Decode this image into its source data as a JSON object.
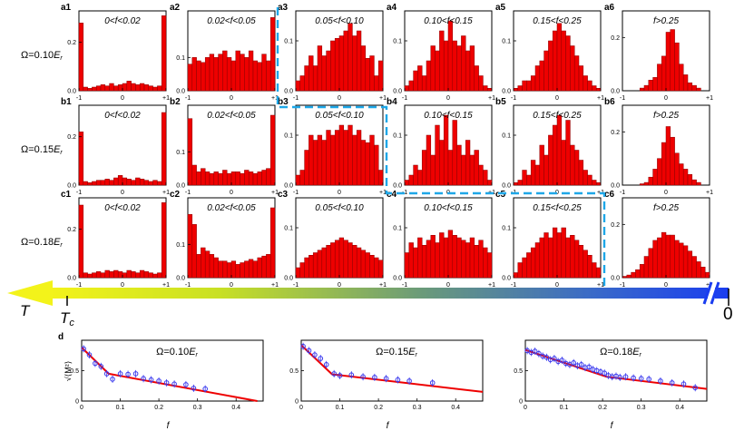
{
  "chart_data": {
    "type": "bar",
    "histograms": {
      "row_labels": [
        {
          "id": "a",
          "prefix": "Ω=0.10",
          "sub": "E",
          "subr": "r"
        },
        {
          "id": "b",
          "prefix": "Ω=0.15",
          "sub": "E",
          "subr": "r"
        },
        {
          "id": "c",
          "prefix": "Ω=0.18",
          "sub": "E",
          "subr": "r"
        }
      ],
      "column_ranges": [
        "0<f<0.02",
        "0.02<f<0.05",
        "0.05<f<0.10",
        "0.10<f<0.15",
        "0.15<f<0.25",
        "f>0.25"
      ],
      "x_ticks": [
        "-1",
        "0",
        "+1"
      ],
      "panels": [
        {
          "id": "a1",
          "y_ticks": [
            "0.2",
            "0.0"
          ],
          "ylim": [
            0,
            0.33
          ],
          "values": [
            0.28,
            0.015,
            0.01,
            0.015,
            0.02,
            0.025,
            0.02,
            0.03,
            0.02,
            0.025,
            0.03,
            0.04,
            0.03,
            0.025,
            0.03,
            0.025,
            0.02,
            0.015,
            0.02,
            0.31
          ]
        },
        {
          "id": "a2",
          "y_ticks": [
            "0.1",
            "0.0"
          ],
          "ylim": [
            0,
            0.24
          ],
          "values": [
            0.08,
            0.1,
            0.09,
            0.085,
            0.1,
            0.11,
            0.1,
            0.11,
            0.12,
            0.1,
            0.09,
            0.12,
            0.11,
            0.1,
            0.12,
            0.09,
            0.085,
            0.11,
            0.09,
            0.22
          ]
        },
        {
          "id": "a3",
          "y_ticks": [
            "0.1",
            "0.0"
          ],
          "ylim": [
            0,
            0.16
          ],
          "values": [
            0.02,
            0.03,
            0.05,
            0.07,
            0.05,
            0.09,
            0.07,
            0.08,
            0.1,
            0.105,
            0.11,
            0.12,
            0.135,
            0.11,
            0.12,
            0.09,
            0.065,
            0.07,
            0.03,
            0.06
          ]
        },
        {
          "id": "a4",
          "y_ticks": [
            "0.1",
            "0.0"
          ],
          "ylim": [
            0,
            0.16
          ],
          "values": [
            0.01,
            0.02,
            0.04,
            0.05,
            0.03,
            0.06,
            0.09,
            0.08,
            0.12,
            0.1,
            0.14,
            0.1,
            0.09,
            0.11,
            0.08,
            0.09,
            0.05,
            0.03,
            0.01,
            0.005
          ]
        },
        {
          "id": "a5",
          "y_ticks": [
            "0.1",
            "0.0"
          ],
          "ylim": [
            0,
            0.16
          ],
          "values": [
            0.005,
            0.01,
            0.02,
            0.02,
            0.03,
            0.05,
            0.06,
            0.08,
            0.1,
            0.12,
            0.135,
            0.12,
            0.11,
            0.09,
            0.07,
            0.05,
            0.03,
            0.02,
            0.01,
            0.005
          ]
        },
        {
          "id": "a6",
          "y_ticks": [
            "0.2",
            "0.0"
          ],
          "ylim": [
            0,
            0.3
          ],
          "values": [
            0,
            0,
            0,
            0,
            0.01,
            0.02,
            0.04,
            0.05,
            0.1,
            0.13,
            0.22,
            0.23,
            0.18,
            0.1,
            0.06,
            0.03,
            0.02,
            0.01,
            0,
            0
          ]
        },
        {
          "id": "b1",
          "y_ticks": [
            "0.2",
            "0.0"
          ],
          "ylim": [
            0,
            0.33
          ],
          "values": [
            0.22,
            0.015,
            0.01,
            0.015,
            0.02,
            0.02,
            0.025,
            0.02,
            0.03,
            0.04,
            0.03,
            0.025,
            0.02,
            0.03,
            0.025,
            0.02,
            0.015,
            0.02,
            0.015,
            0.3
          ]
        },
        {
          "id": "b2",
          "y_ticks": [
            "0.1",
            "0.0"
          ],
          "ylim": [
            0,
            0.24
          ],
          "values": [
            0.2,
            0.06,
            0.04,
            0.05,
            0.04,
            0.035,
            0.04,
            0.035,
            0.045,
            0.035,
            0.04,
            0.04,
            0.035,
            0.045,
            0.04,
            0.035,
            0.04,
            0.045,
            0.05,
            0.21
          ]
        },
        {
          "id": "b3",
          "y_ticks": [
            "0.1",
            "0.0"
          ],
          "ylim": [
            0,
            0.16
          ],
          "values": [
            0.02,
            0.03,
            0.07,
            0.1,
            0.09,
            0.1,
            0.09,
            0.11,
            0.1,
            0.11,
            0.12,
            0.11,
            0.12,
            0.1,
            0.11,
            0.09,
            0.085,
            0.1,
            0.08,
            0.03
          ]
        },
        {
          "id": "b4",
          "y_ticks": [
            "0.1",
            "0.0"
          ],
          "ylim": [
            0,
            0.16
          ],
          "values": [
            0.01,
            0.02,
            0.04,
            0.03,
            0.07,
            0.1,
            0.06,
            0.12,
            0.09,
            0.14,
            0.07,
            0.13,
            0.08,
            0.06,
            0.09,
            0.06,
            0.07,
            0.04,
            0.03,
            0.01
          ]
        },
        {
          "id": "b5",
          "y_ticks": [
            "0.1",
            "0.0"
          ],
          "ylim": [
            0,
            0.16
          ],
          "values": [
            0.005,
            0.01,
            0.03,
            0.02,
            0.05,
            0.04,
            0.08,
            0.06,
            0.1,
            0.12,
            0.14,
            0.09,
            0.13,
            0.08,
            0.07,
            0.05,
            0.03,
            0.02,
            0.01,
            0.005
          ]
        },
        {
          "id": "b6",
          "y_ticks": [
            "0.2",
            "0.0"
          ],
          "ylim": [
            0,
            0.3
          ],
          "values": [
            0,
            0,
            0,
            0,
            0.005,
            0.01,
            0.03,
            0.06,
            0.1,
            0.16,
            0.22,
            0.18,
            0.12,
            0.08,
            0.06,
            0.04,
            0.02,
            0.01,
            0,
            0
          ]
        },
        {
          "id": "c1",
          "y_ticks": [
            "0.2",
            "0.0"
          ],
          "ylim": [
            0,
            0.33
          ],
          "values": [
            0.3,
            0.02,
            0.015,
            0.02,
            0.025,
            0.02,
            0.03,
            0.025,
            0.03,
            0.025,
            0.02,
            0.03,
            0.025,
            0.02,
            0.03,
            0.025,
            0.02,
            0.015,
            0.02,
            0.31
          ]
        },
        {
          "id": "c2",
          "y_ticks": [
            "0.1",
            "0.0"
          ],
          "ylim": [
            0,
            0.24
          ],
          "values": [
            0.19,
            0.16,
            0.07,
            0.09,
            0.08,
            0.07,
            0.06,
            0.05,
            0.05,
            0.045,
            0.05,
            0.04,
            0.045,
            0.05,
            0.055,
            0.05,
            0.06,
            0.065,
            0.07,
            0.21
          ]
        },
        {
          "id": "c3",
          "y_ticks": [
            "0.1",
            "0.0"
          ],
          "ylim": [
            0,
            0.16
          ],
          "values": [
            0.02,
            0.03,
            0.04,
            0.045,
            0.05,
            0.055,
            0.06,
            0.065,
            0.07,
            0.075,
            0.08,
            0.075,
            0.07,
            0.065,
            0.06,
            0.055,
            0.05,
            0.045,
            0.04,
            0.035
          ]
        },
        {
          "id": "c4",
          "y_ticks": [
            "0.1",
            "0.0"
          ],
          "ylim": [
            0,
            0.16
          ],
          "values": [
            0.05,
            0.07,
            0.06,
            0.08,
            0.065,
            0.075,
            0.085,
            0.07,
            0.09,
            0.08,
            0.095,
            0.085,
            0.08,
            0.075,
            0.07,
            0.08,
            0.065,
            0.075,
            0.06,
            0.05
          ]
        },
        {
          "id": "c5",
          "y_ticks": [
            "0.1",
            "0.0"
          ],
          "ylim": [
            0,
            0.16
          ],
          "values": [
            0.01,
            0.03,
            0.04,
            0.05,
            0.06,
            0.07,
            0.08,
            0.09,
            0.08,
            0.1,
            0.09,
            0.1,
            0.08,
            0.085,
            0.075,
            0.065,
            0.055,
            0.045,
            0.03,
            0.02
          ]
        },
        {
          "id": "c6",
          "y_ticks": [
            "0.2",
            "0.0"
          ],
          "ylim": [
            0,
            0.3
          ],
          "values": [
            0.005,
            0.01,
            0.02,
            0.03,
            0.05,
            0.08,
            0.11,
            0.14,
            0.15,
            0.17,
            0.16,
            0.16,
            0.14,
            0.13,
            0.12,
            0.1,
            0.08,
            0.06,
            0.04,
            0.02
          ]
        }
      ]
    },
    "arrow": {
      "left_label": "T",
      "tc_label": "T",
      "tc_sub": "c",
      "right_label": "0"
    },
    "line_panels": {
      "panel_label": "d",
      "ylabel": "√⟨M²⟩",
      "xlabel": "f",
      "plots": [
        {
          "title_prefix": "Ω=0.10",
          "title_sub": "E",
          "title_subr": "r",
          "xlim": [
            0,
            0.47
          ],
          "ylim": [
            0,
            1.0
          ],
          "x_ticks": [
            0,
            0.1,
            0.2,
            0.3,
            0.4
          ],
          "x_tick_labels": [
            "0",
            "0.1",
            "0.2",
            "0.3",
            "0.4"
          ],
          "y_ticks": [
            0,
            0.5
          ],
          "y_tick_labels": [
            "0",
            "0.5"
          ],
          "points": [
            {
              "x": 0.005,
              "y": 0.86
            },
            {
              "x": 0.02,
              "y": 0.76
            },
            {
              "x": 0.035,
              "y": 0.62
            },
            {
              "x": 0.05,
              "y": 0.57
            },
            {
              "x": 0.065,
              "y": 0.45
            },
            {
              "x": 0.08,
              "y": 0.36
            },
            {
              "x": 0.1,
              "y": 0.45
            },
            {
              "x": 0.12,
              "y": 0.44
            },
            {
              "x": 0.14,
              "y": 0.45
            },
            {
              "x": 0.16,
              "y": 0.37
            },
            {
              "x": 0.18,
              "y": 0.35
            },
            {
              "x": 0.2,
              "y": 0.33
            },
            {
              "x": 0.22,
              "y": 0.3
            },
            {
              "x": 0.24,
              "y": 0.28
            },
            {
              "x": 0.27,
              "y": 0.27
            },
            {
              "x": 0.29,
              "y": 0.21
            },
            {
              "x": 0.32,
              "y": 0.2
            }
          ],
          "fit": [
            {
              "x": 0,
              "y": 0.88
            },
            {
              "x": 0.07,
              "y": 0.45
            },
            {
              "x": 0.455,
              "y": 0.0
            }
          ]
        },
        {
          "title_prefix": "Ω=0.15",
          "title_sub": "E",
          "title_subr": "r",
          "xlim": [
            0,
            0.47
          ],
          "ylim": [
            0,
            1.0
          ],
          "x_ticks": [
            0,
            0.1,
            0.2,
            0.3,
            0.4
          ],
          "x_tick_labels": [
            "0",
            "0.1",
            "0.2",
            "0.3",
            "0.4"
          ],
          "y_ticks": [
            0,
            0.5
          ],
          "y_tick_labels": [
            "0",
            "0.5"
          ],
          "points": [
            {
              "x": 0.005,
              "y": 0.9
            },
            {
              "x": 0.02,
              "y": 0.83
            },
            {
              "x": 0.035,
              "y": 0.76
            },
            {
              "x": 0.05,
              "y": 0.7
            },
            {
              "x": 0.065,
              "y": 0.6
            },
            {
              "x": 0.085,
              "y": 0.45
            },
            {
              "x": 0.1,
              "y": 0.42
            },
            {
              "x": 0.13,
              "y": 0.43
            },
            {
              "x": 0.16,
              "y": 0.4
            },
            {
              "x": 0.19,
              "y": 0.39
            },
            {
              "x": 0.22,
              "y": 0.37
            },
            {
              "x": 0.25,
              "y": 0.35
            },
            {
              "x": 0.28,
              "y": 0.33
            },
            {
              "x": 0.34,
              "y": 0.3
            }
          ],
          "fit": [
            {
              "x": 0,
              "y": 0.92
            },
            {
              "x": 0.08,
              "y": 0.44
            },
            {
              "x": 0.47,
              "y": 0.15
            }
          ]
        },
        {
          "title_prefix": "Ω=0.18",
          "title_sub": "E",
          "title_subr": "r",
          "xlim": [
            0,
            0.47
          ],
          "ylim": [
            0,
            1.0
          ],
          "x_ticks": [
            0,
            0.1,
            0.2,
            0.3,
            0.4
          ],
          "x_tick_labels": [
            "0",
            "0.1",
            "0.2",
            "0.3",
            "0.4"
          ],
          "y_ticks": [
            0,
            0.5
          ],
          "y_tick_labels": [
            "0",
            "0.5"
          ],
          "points": [
            {
              "x": 0.005,
              "y": 0.83
            },
            {
              "x": 0.015,
              "y": 0.8
            },
            {
              "x": 0.025,
              "y": 0.82
            },
            {
              "x": 0.035,
              "y": 0.78
            },
            {
              "x": 0.045,
              "y": 0.74
            },
            {
              "x": 0.055,
              "y": 0.72
            },
            {
              "x": 0.065,
              "y": 0.68
            },
            {
              "x": 0.075,
              "y": 0.7
            },
            {
              "x": 0.085,
              "y": 0.65
            },
            {
              "x": 0.095,
              "y": 0.67
            },
            {
              "x": 0.105,
              "y": 0.62
            },
            {
              "x": 0.115,
              "y": 0.6
            },
            {
              "x": 0.125,
              "y": 0.63
            },
            {
              "x": 0.135,
              "y": 0.58
            },
            {
              "x": 0.145,
              "y": 0.6
            },
            {
              "x": 0.155,
              "y": 0.55
            },
            {
              "x": 0.165,
              "y": 0.56
            },
            {
              "x": 0.175,
              "y": 0.52
            },
            {
              "x": 0.185,
              "y": 0.5
            },
            {
              "x": 0.195,
              "y": 0.48
            },
            {
              "x": 0.205,
              "y": 0.46
            },
            {
              "x": 0.215,
              "y": 0.42
            },
            {
              "x": 0.225,
              "y": 0.4
            },
            {
              "x": 0.235,
              "y": 0.41
            },
            {
              "x": 0.245,
              "y": 0.39
            },
            {
              "x": 0.26,
              "y": 0.4
            },
            {
              "x": 0.28,
              "y": 0.38
            },
            {
              "x": 0.3,
              "y": 0.37
            },
            {
              "x": 0.32,
              "y": 0.36
            },
            {
              "x": 0.35,
              "y": 0.33
            },
            {
              "x": 0.38,
              "y": 0.3
            },
            {
              "x": 0.41,
              "y": 0.28
            },
            {
              "x": 0.44,
              "y": 0.22
            }
          ],
          "fit": [
            {
              "x": 0,
              "y": 0.84
            },
            {
              "x": 0.21,
              "y": 0.4
            },
            {
              "x": 0.47,
              "y": 0.2
            }
          ]
        }
      ]
    }
  }
}
